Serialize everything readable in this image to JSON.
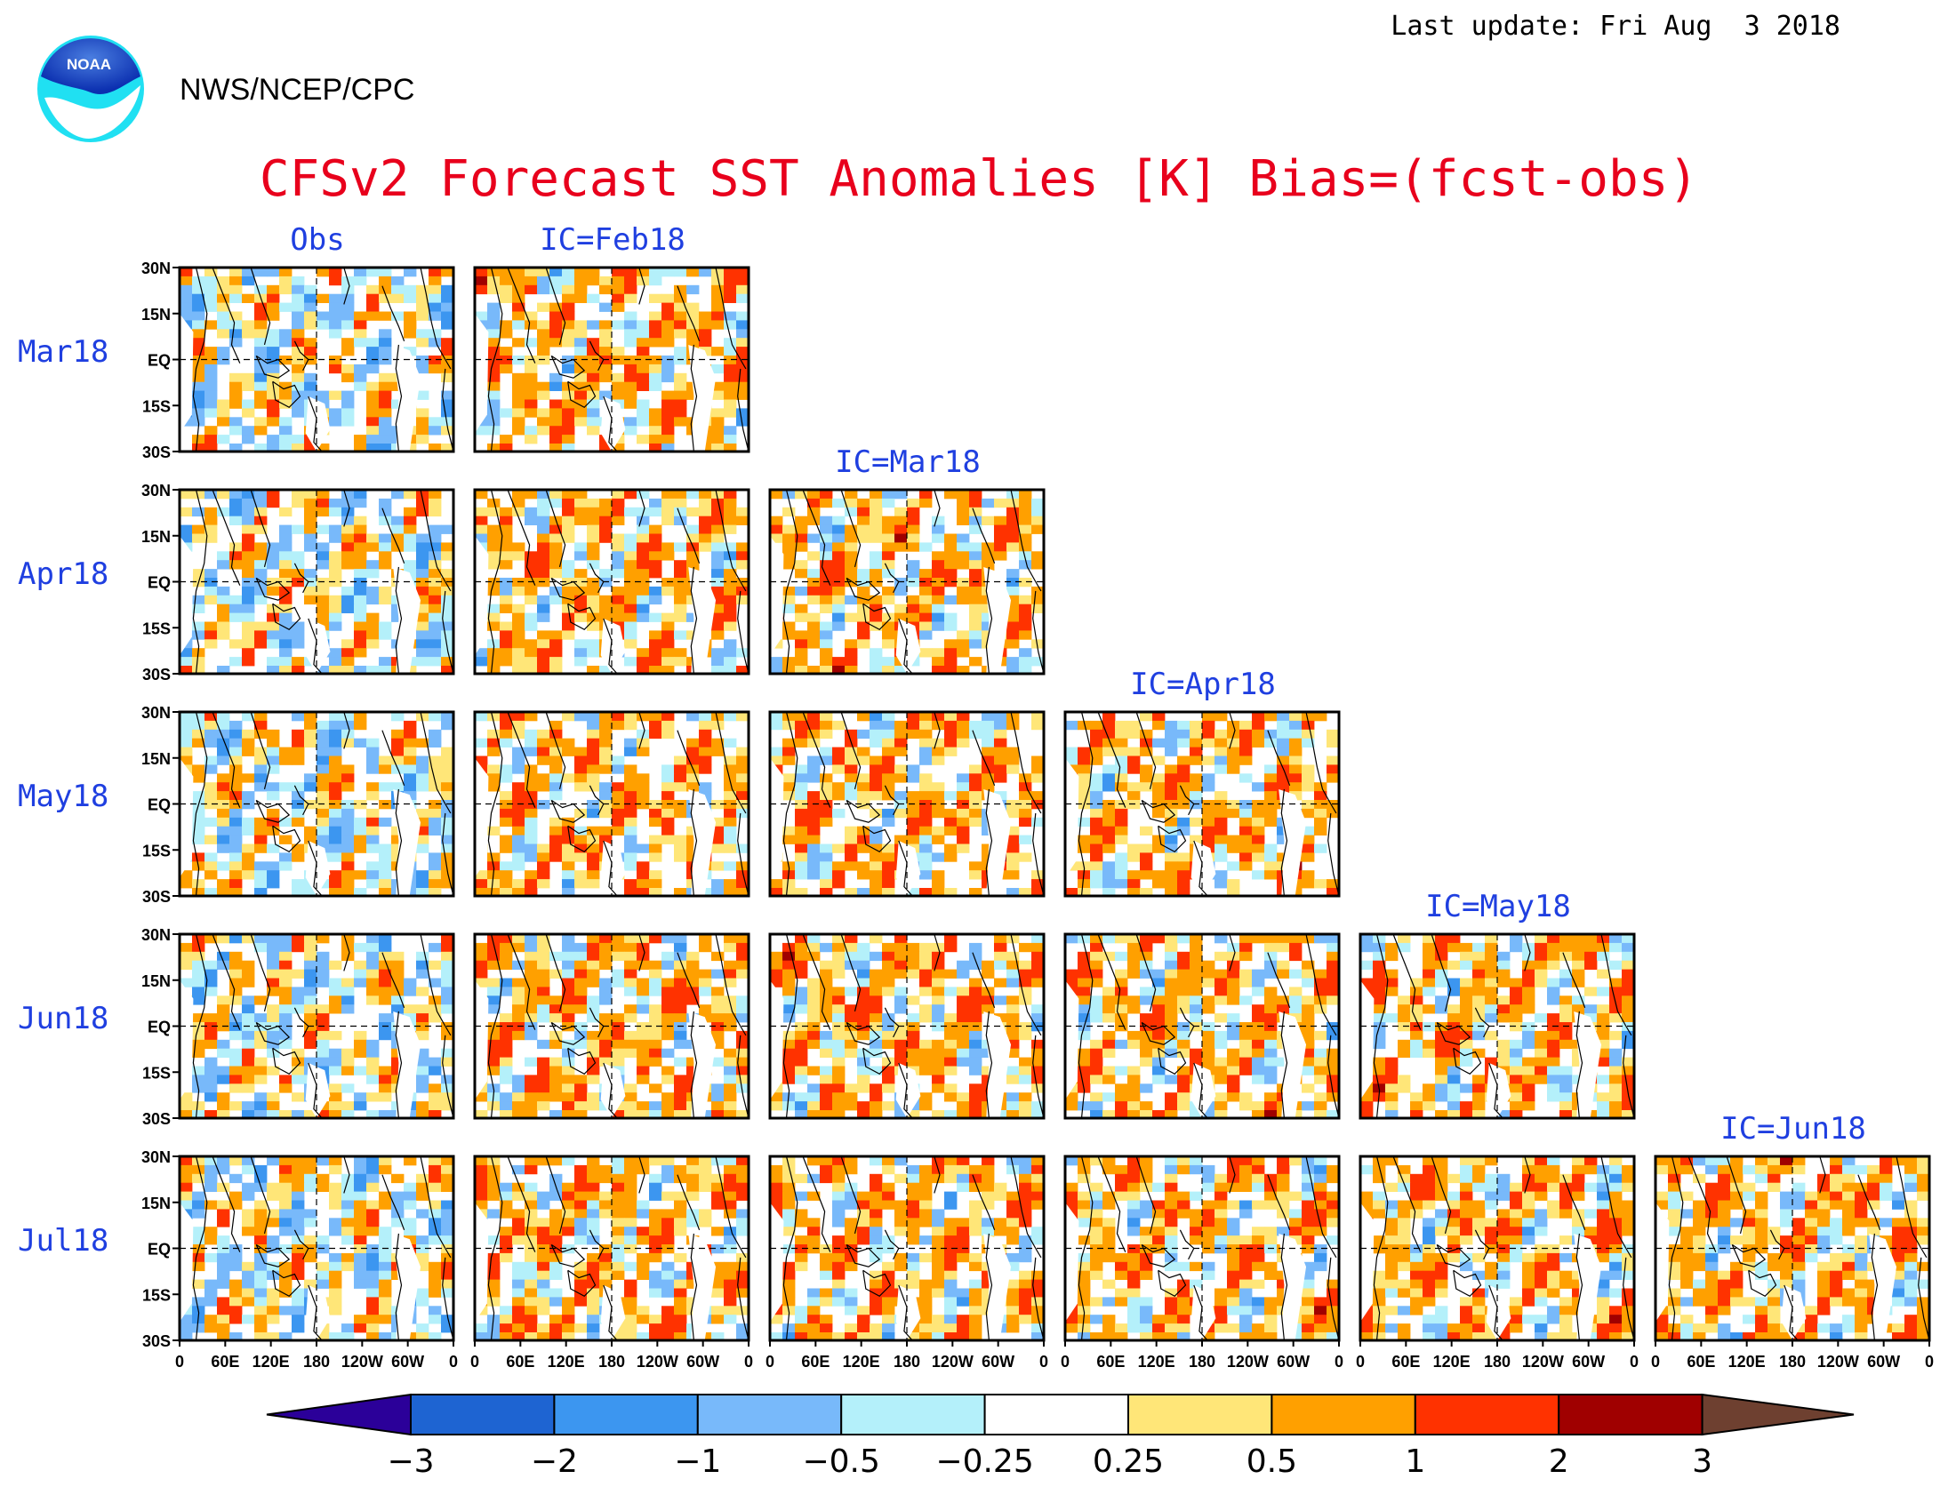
{
  "header": {
    "last_update": "Last update: Fri Aug  3 2018",
    "agency": "NWS/NCEP/CPC",
    "logo_text": "NOAA"
  },
  "chart_data": {
    "type": "heatmap",
    "title": "CFSv2 Forecast SST Anomalies [K] Bias=(fcst-obs)",
    "column_labels": [
      "Obs",
      "IC=Feb18",
      "IC=Mar18",
      "IC=Apr18",
      "IC=May18",
      "IC=Jun18"
    ],
    "row_labels": [
      "Mar18",
      "Apr18",
      "May18",
      "Jun18",
      "Jul18"
    ],
    "lat_ticks": [
      "30N",
      "15N",
      "EQ",
      "15S",
      "30S"
    ],
    "lon_ticks": [
      "0",
      "60E",
      "120E",
      "180",
      "120W",
      "60W",
      "0"
    ],
    "lat_range": [
      -30,
      30
    ],
    "lon_range": [
      0,
      360
    ],
    "panels_per_row": [
      2,
      3,
      4,
      5,
      6
    ],
    "color_levels": [
      -3,
      -2,
      -1,
      -0.5,
      -0.25,
      0.25,
      0.5,
      1,
      2,
      3
    ],
    "colorbar_tick_labels": [
      "−3",
      "−2",
      "−1",
      "−0.5",
      "−0.25",
      "0.25",
      "0.5",
      "1",
      "2",
      "3"
    ],
    "colorbar_colors": [
      "#2b0099",
      "#1e64d2",
      "#3c96f0",
      "#78b9fa",
      "#b4f0fa",
      "#ffffff",
      "#ffe678",
      "#ffa000",
      "#ff3200",
      "#a00000",
      "#6e4030"
    ],
    "reference_lines": "dashed at EQ and 180"
  },
  "colors": {
    "title": "#e8001c",
    "labels_blue": "#1f3fe0",
    "axis": "#000000",
    "coast": "#000000"
  }
}
